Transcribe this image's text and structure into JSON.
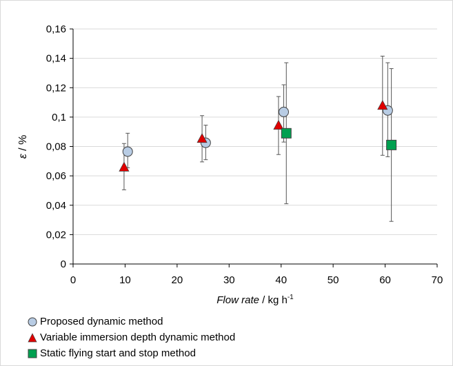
{
  "chart_data": {
    "type": "scatter",
    "ylabel_symbol": "ε",
    "ylabel_unit": " / %",
    "xlabel_italic": "Flow rate",
    "xlabel_unit": " / kg h",
    "xlabel_sup": "-1",
    "xlim": [
      0,
      70
    ],
    "ylim": [
      0,
      0.16
    ],
    "x_ticks": [
      "0",
      "10",
      "20",
      "30",
      "40",
      "50",
      "60",
      "70"
    ],
    "y_ticks": [
      "0",
      "0,02",
      "0,04",
      "0,06",
      "0,08",
      "0,1",
      "0,12",
      "0,14",
      "0,16"
    ],
    "grid": "horizontal",
    "legend_position": "bottom-left",
    "series": [
      {
        "name": "Proposed dynamic method",
        "marker": "circle",
        "color": "#b8cce4",
        "points": [
          {
            "x": 10.5,
            "y": 0.0765,
            "err_low": 0.0655,
            "err_high": 0.089
          },
          {
            "x": 25.5,
            "y": 0.0825,
            "err_low": 0.071,
            "err_high": 0.0945
          },
          {
            "x": 40.5,
            "y": 0.1035,
            "err_low": 0.083,
            "err_high": 0.122
          },
          {
            "x": 60.5,
            "y": 0.1045,
            "err_low": 0.073,
            "err_high": 0.137
          }
        ]
      },
      {
        "name": "Variable immersion depth dynamic method",
        "marker": "triangle",
        "color": "#e00000",
        "points": [
          {
            "x": 9.8,
            "y": 0.066,
            "err_low": 0.0505,
            "err_high": 0.082
          },
          {
            "x": 24.8,
            "y": 0.0855,
            "err_low": 0.0695,
            "err_high": 0.101
          },
          {
            "x": 39.5,
            "y": 0.0945,
            "err_low": 0.0745,
            "err_high": 0.114
          },
          {
            "x": 59.5,
            "y": 0.108,
            "err_low": 0.074,
            "err_high": 0.1415
          }
        ]
      },
      {
        "name": "Static flying start and stop method",
        "marker": "square",
        "color": "#00a050",
        "points": [
          {
            "x": 41.0,
            "y": 0.089,
            "err_low": 0.041,
            "err_high": 0.137
          },
          {
            "x": 61.2,
            "y": 0.081,
            "err_low": 0.029,
            "err_high": 0.133
          }
        ]
      }
    ]
  }
}
